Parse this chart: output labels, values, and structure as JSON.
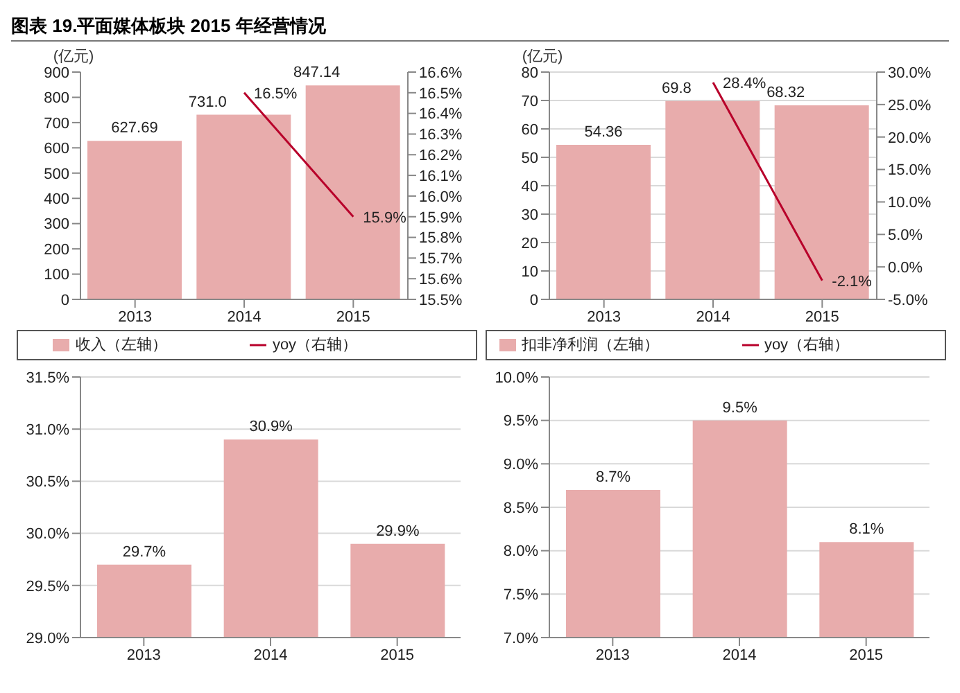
{
  "chart_data": [
    {
      "type": "bar",
      "title": "图表 19.平面媒体板块 2015 年经营情况",
      "ylabel": "(亿元)",
      "categories": [
        "2013",
        "2014",
        "2015"
      ],
      "legend": "bottom",
      "ylim": [
        0,
        900
      ],
      "yticks": [
        0,
        100,
        200,
        300,
        400,
        500,
        600,
        700,
        800,
        900
      ],
      "y2lim": [
        15.5,
        16.6
      ],
      "y2ticks": [
        {
          "value": 15.5,
          "label": "15.5%"
        },
        {
          "value": 15.6,
          "label": "15.6%"
        },
        {
          "value": 15.7,
          "label": "15.7%"
        },
        {
          "value": 15.8,
          "label": "15.8%"
        },
        {
          "value": 15.9,
          "label": "15.9%"
        },
        {
          "value": 16.0,
          "label": "16.0%"
        },
        {
          "value": 16.1,
          "label": "16.1%"
        },
        {
          "value": 16.2,
          "label": "16.2%"
        },
        {
          "value": 16.3,
          "label": "16.3%"
        },
        {
          "value": 16.4,
          "label": "16.4%"
        },
        {
          "value": 16.5,
          "label": "16.5%"
        },
        {
          "value": 16.6,
          "label": "16.6%"
        }
      ],
      "series": [
        {
          "name": "收入（左轴）",
          "color": "#e8acac",
          "values": [
            627.69,
            731.0,
            847.14
          ],
          "value_labels": [
            "627.69",
            "731.0",
            "847.14"
          ]
        },
        {
          "name": "yoy（右轴）",
          "type": "line",
          "axis": "y2",
          "color": "#b8002a",
          "values": [
            null,
            16.5,
            15.9
          ],
          "value_labels": [
            null,
            "16.5%",
            "15.9%"
          ]
        }
      ]
    },
    {
      "type": "bar",
      "ylabel": "(亿元)",
      "categories": [
        "2013",
        "2014",
        "2015"
      ],
      "legend": "bottom",
      "grid": "y",
      "ylim": [
        0,
        80
      ],
      "yticks": [
        0,
        10,
        20,
        30,
        40,
        50,
        60,
        70,
        80
      ],
      "y2lim": [
        -5,
        30
      ],
      "y2ticks": [
        {
          "value": -5,
          "label": "-5.0%"
        },
        {
          "value": 0,
          "label": "0.0%"
        },
        {
          "value": 5,
          "label": "5.0%"
        },
        {
          "value": 10,
          "label": "10.0%"
        },
        {
          "value": 15,
          "label": "15.0%"
        },
        {
          "value": 20,
          "label": "20.0%"
        },
        {
          "value": 25,
          "label": "25.0%"
        },
        {
          "value": 30,
          "label": "30.0%"
        }
      ],
      "series": [
        {
          "name": "扣非净利润（左轴）",
          "color": "#e8acac",
          "values": [
            54.36,
            69.8,
            68.32
          ],
          "value_labels": [
            "54.36",
            "69.8",
            "68.32"
          ]
        },
        {
          "name": "yoy（右轴）",
          "type": "line",
          "axis": "y2",
          "color": "#b8002a",
          "values": [
            null,
            28.4,
            -2.1
          ],
          "value_labels": [
            null,
            "28.4%",
            "-2.1%"
          ]
        }
      ]
    },
    {
      "type": "bar",
      "categories": [
        "2013",
        "2014",
        "2015"
      ],
      "grid": "y",
      "ylim": [
        29,
        31.5
      ],
      "yticks": [
        {
          "value": 29,
          "label": "29.0%"
        },
        {
          "value": 29.5,
          "label": "29.5%"
        },
        {
          "value": 30,
          "label": "30.0%"
        },
        {
          "value": 30.5,
          "label": "30.5%"
        },
        {
          "value": 31,
          "label": "31.0%"
        },
        {
          "value": 31.5,
          "label": "31.5%"
        }
      ],
      "series": [
        {
          "color": "#e8acac",
          "values": [
            29.7,
            30.9,
            29.9
          ],
          "value_labels": [
            "29.7%",
            "30.9%",
            "29.9%"
          ]
        }
      ]
    },
    {
      "type": "bar",
      "categories": [
        "2013",
        "2014",
        "2015"
      ],
      "grid": "y",
      "ylim": [
        7,
        10
      ],
      "yticks": [
        {
          "value": 7,
          "label": "7.0%"
        },
        {
          "value": 7.5,
          "label": "7.5%"
        },
        {
          "value": 8,
          "label": "8.0%"
        },
        {
          "value": 8.5,
          "label": "8.5%"
        },
        {
          "value": 9,
          "label": "9.0%"
        },
        {
          "value": 9.5,
          "label": "9.5%"
        },
        {
          "value": 10,
          "label": "10.0%"
        }
      ],
      "series": [
        {
          "color": "#e8acac",
          "values": [
            8.7,
            9.5,
            8.1
          ],
          "value_labels": [
            "8.7%",
            "9.5%",
            "8.1%"
          ]
        }
      ]
    }
  ]
}
